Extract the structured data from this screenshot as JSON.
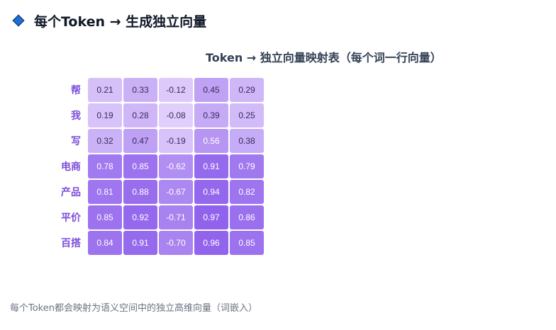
{
  "header": {
    "icon": "diamond-icon",
    "icon_color": "#1e6fd9",
    "title": "每个Token → 生成独立向量"
  },
  "table": {
    "title": "Token → 独立向量映射表（每个词一行向量）",
    "rows": [
      {
        "token": "帮",
        "values": [
          "0.21",
          "0.33",
          "-0.12",
          "0.45",
          "0.29"
        ]
      },
      {
        "token": "我",
        "values": [
          "0.19",
          "0.28",
          "-0.08",
          "0.39",
          "0.25"
        ]
      },
      {
        "token": "写",
        "values": [
          "0.32",
          "0.47",
          "-0.19",
          "0.56",
          "0.38"
        ]
      },
      {
        "token": "电商",
        "values": [
          "0.78",
          "0.85",
          "-0.62",
          "0.91",
          "0.79"
        ]
      },
      {
        "token": "产品",
        "values": [
          "0.81",
          "0.88",
          "-0.67",
          "0.94",
          "0.82"
        ]
      },
      {
        "token": "平价",
        "values": [
          "0.85",
          "0.92",
          "-0.71",
          "0.97",
          "0.86"
        ]
      },
      {
        "token": "百搭",
        "values": [
          "0.84",
          "0.91",
          "-0.70",
          "0.96",
          "0.85"
        ]
      }
    ],
    "colors": {
      "low": "#e3d3fb",
      "high": "#9163ec",
      "label": "#7c4ddb"
    }
  },
  "footer": {
    "caption": "每个Token都会映射为语义空间中的独立高维向量（词嵌入）"
  }
}
